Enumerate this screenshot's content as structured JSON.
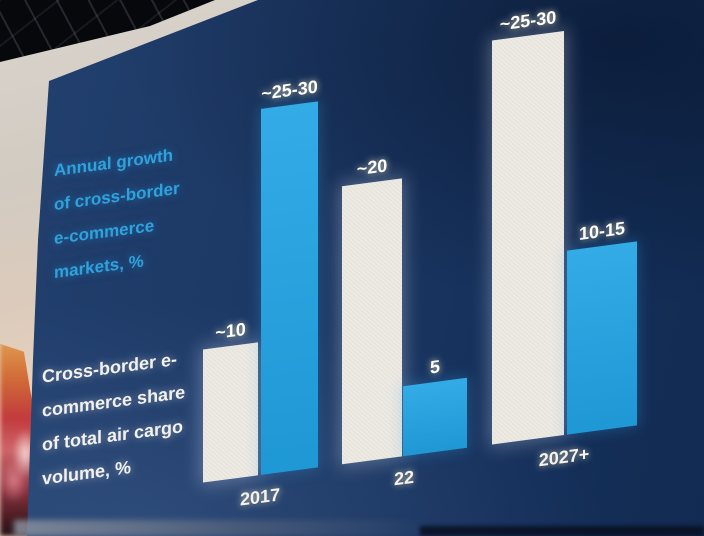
{
  "slide": {
    "growth_label": {
      "lines": [
        "Annual growth",
        "of cross-border",
        "e-commerce",
        "markets, %"
      ]
    },
    "share_label": {
      "lines": [
        "Cross-border e-",
        "commerce share",
        "of total air cargo",
        "volume, %"
      ]
    }
  },
  "chart_data": {
    "type": "bar",
    "title": "",
    "xlabel": "",
    "ylabel": "%",
    "grid": false,
    "legend_position": "left",
    "ylim": [
      0,
      30
    ],
    "categories": [
      "2017",
      "22",
      "2027+"
    ],
    "series": [
      {
        "name": "Cross-border e-commerce share of total air cargo volume, %",
        "color": "#edeae4",
        "values": [
          10,
          20,
          27.5
        ],
        "value_labels": [
          "~10",
          "~20",
          "~25-30"
        ]
      },
      {
        "name": "Annual growth of cross-border e-commerce markets, %",
        "color": "#22a4e4",
        "values": [
          27.5,
          5,
          12.5
        ],
        "value_labels": [
          "~25-30",
          "5",
          "10-15"
        ]
      }
    ]
  },
  "colors": {
    "bar_blue": "#22a4e4",
    "bar_white": "#edeae4",
    "blue_text": "#2fa2dc",
    "white_text": "#f3f1ed",
    "value_label_text": "#ffffff",
    "screen_navy": "#1b3763",
    "wall": "#d9d4cd",
    "ceiling_black": "#07080c"
  }
}
